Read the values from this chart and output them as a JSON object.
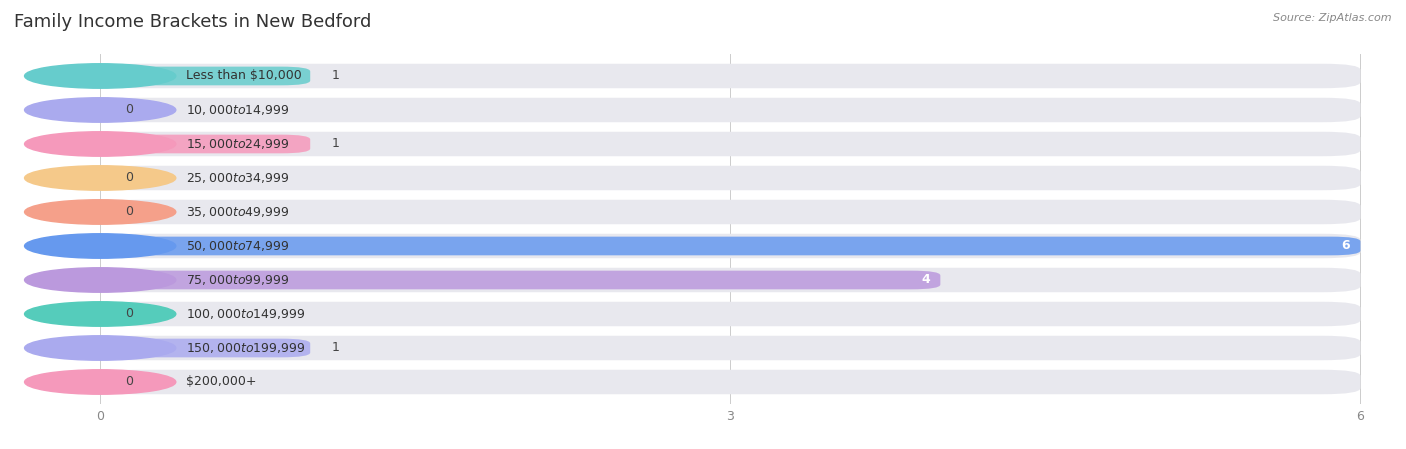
{
  "title": "Family Income Brackets in New Bedford",
  "source": "Source: ZipAtlas.com",
  "categories": [
    "Less than $10,000",
    "$10,000 to $14,999",
    "$15,000 to $24,999",
    "$25,000 to $34,999",
    "$35,000 to $49,999",
    "$50,000 to $74,999",
    "$75,000 to $99,999",
    "$100,000 to $149,999",
    "$150,000 to $199,999",
    "$200,000+"
  ],
  "values": [
    1,
    0,
    1,
    0,
    0,
    6,
    4,
    0,
    1,
    0
  ],
  "bar_colors": [
    "#66cccc",
    "#aaaaee",
    "#f599bb",
    "#f5c98a",
    "#f5a08a",
    "#6699ee",
    "#bb99dd",
    "#55ccbb",
    "#aaaaee",
    "#f599bb"
  ],
  "xlim": [
    0,
    6
  ],
  "xticks": [
    0,
    3,
    6
  ],
  "background_color": "#ffffff",
  "bar_bg_color": "#e8e8ee",
  "title_fontsize": 13,
  "label_fontsize": 9,
  "value_fontsize": 9
}
